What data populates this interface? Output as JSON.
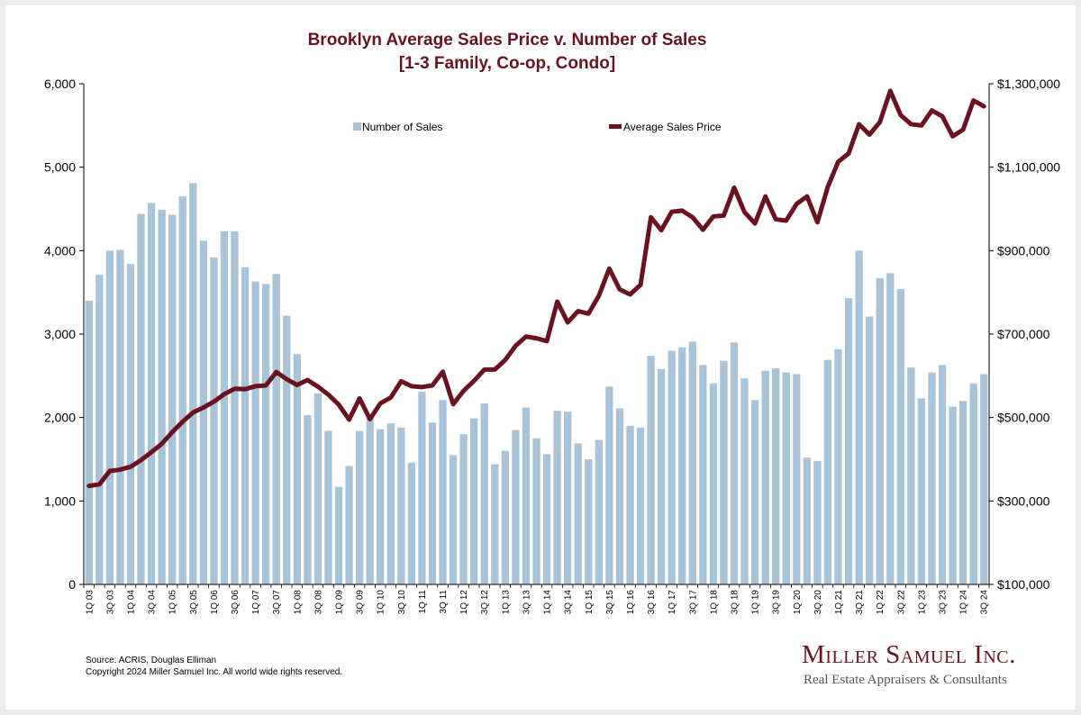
{
  "chart_data": {
    "type": "bar",
    "title": "Brooklyn Average Sales Price v. Number of Sales",
    "subtitle": "[1-3 Family, Co-op, Condo]",
    "categories": [
      "1Q 03",
      "2Q 03",
      "3Q 03",
      "4Q 03",
      "1Q 04",
      "2Q 04",
      "3Q 04",
      "4Q 04",
      "1Q 05",
      "2Q 05",
      "3Q 05",
      "4Q 05",
      "1Q 06",
      "2Q 06",
      "3Q 06",
      "4Q 06",
      "1Q 07",
      "2Q 07",
      "3Q 07",
      "4Q 07",
      "1Q 08",
      "2Q 08",
      "3Q 08",
      "4Q 08",
      "1Q 09",
      "2Q 09",
      "3Q 09",
      "4Q 09",
      "1Q 10",
      "2Q 10",
      "3Q 10",
      "4Q 10",
      "1Q 11",
      "2Q 11",
      "3Q 11",
      "4Q 11",
      "1Q 12",
      "2Q 12",
      "3Q 12",
      "4Q 12",
      "1Q 13",
      "2Q 13",
      "3Q 13",
      "4Q 13",
      "1Q 14",
      "2Q 14",
      "3Q 14",
      "4Q 14",
      "1Q 15",
      "2Q 15",
      "3Q 15",
      "4Q 15",
      "1Q 16",
      "2Q 16",
      "3Q 16",
      "4Q 16",
      "1Q 17",
      "2Q 17",
      "3Q 17",
      "4Q 17",
      "1Q 18",
      "2Q 18",
      "3Q 18",
      "4Q 18",
      "1Q 19",
      "2Q 19",
      "3Q 19",
      "4Q 19",
      "1Q 20",
      "2Q 20",
      "3Q 20",
      "4Q 20",
      "1Q 21",
      "2Q 21",
      "3Q 21",
      "4Q 21",
      "1Q 22",
      "2Q 22",
      "3Q 22",
      "4Q 22",
      "1Q 23",
      "2Q 23",
      "3Q 23",
      "4Q 23",
      "1Q 24",
      "2Q 24",
      "3Q 24"
    ],
    "x_tick_labels": [
      "1Q 03",
      "3Q 03",
      "1Q 04",
      "3Q 04",
      "1Q 05",
      "3Q 05",
      "1Q 06",
      "3Q 06",
      "1Q 07",
      "3Q 07",
      "1Q 08",
      "3Q 08",
      "1Q 09",
      "3Q 09",
      "1Q 10",
      "3Q 10",
      "1Q 11",
      "3Q 11",
      "1Q 12",
      "3Q 12",
      "1Q 13",
      "3Q 13",
      "1Q 14",
      "3Q 14",
      "1Q 15",
      "3Q 15",
      "1Q 16",
      "3Q 16",
      "1Q 17",
      "3Q 17",
      "1Q 18",
      "3Q 18",
      "1Q 19",
      "3Q 19",
      "1Q 20",
      "3Q 20",
      "1Q 21",
      "3Q 21",
      "1Q 22",
      "3Q 22",
      "1Q 23",
      "3Q 23",
      "1Q 24",
      "3Q 24"
    ],
    "series": [
      {
        "name": "Number of Sales",
        "type": "bar",
        "axis": "left",
        "color": "#a9c4d9",
        "values": [
          3400,
          3710,
          4000,
          4010,
          3840,
          4440,
          4570,
          4490,
          4430,
          4650,
          4810,
          4120,
          3920,
          4230,
          4230,
          3800,
          3630,
          3600,
          3720,
          3220,
          2760,
          2030,
          2290,
          1840,
          1170,
          1420,
          1840,
          1990,
          1860,
          1930,
          1880,
          1460,
          2310,
          1940,
          2210,
          1550,
          1800,
          1990,
          2170,
          1440,
          1600,
          1850,
          2120,
          1750,
          1560,
          2080,
          2070,
          1690,
          1500,
          1730,
          2370,
          2110,
          1900,
          1880,
          2740,
          2580,
          2800,
          2840,
          2910,
          2630,
          2410,
          2680,
          2900,
          2470,
          2210,
          2560,
          2590,
          2540,
          2520,
          1520,
          1480,
          2690,
          2820,
          3430,
          4000,
          3210,
          3670,
          3730,
          3540,
          2600,
          2230,
          2540,
          2630,
          2130,
          2200,
          2410,
          2520
        ]
      },
      {
        "name": "Average Sales Price",
        "type": "line",
        "axis": "right",
        "color": "#6b1220",
        "values": [
          336000,
          340000,
          372000,
          375000,
          382000,
          398000,
          417000,
          437000,
          465000,
          490000,
          512000,
          524000,
          538000,
          556000,
          569000,
          568000,
          575000,
          577000,
          609000,
          592000,
          578000,
          590000,
          574000,
          555000,
          531000,
          495000,
          546000,
          496000,
          534000,
          548000,
          587000,
          575000,
          573000,
          577000,
          610000,
          532000,
          564000,
          588000,
          615000,
          615000,
          638000,
          672000,
          694000,
          690000,
          683000,
          778000,
          728000,
          755000,
          749000,
          792000,
          857000,
          807000,
          795000,
          818000,
          980000,
          949000,
          993000,
          996000,
          980000,
          950000,
          982000,
          984000,
          1051000,
          992000,
          965000,
          1030000,
          975000,
          972000,
          1012000,
          1030000,
          968000,
          1053000,
          1113000,
          1133000,
          1203000,
          1178000,
          1208000,
          1283000,
          1225000,
          1203000,
          1200000,
          1236000,
          1222000,
          1174000,
          1190000,
          1260000,
          1246000
        ]
      }
    ],
    "y_left": {
      "min": 0,
      "max": 6000,
      "ticks": [
        "0",
        "1,000",
        "2,000",
        "3,000",
        "4,000",
        "5,000",
        "6,000"
      ]
    },
    "y_right": {
      "min": 100000,
      "max": 1300000,
      "ticks": [
        "$100,000",
        "$300,000",
        "$500,000",
        "$700,000",
        "$900,000",
        "$1,100,000",
        "$1,300,000"
      ]
    },
    "grid": false,
    "legend_position": "top"
  },
  "footer": {
    "source": "Source: ACRIS, Douglas Elliman",
    "copyright": "Copyright 2024 Miller Samuel Inc.  All world wide rights reserved."
  },
  "logo": {
    "name": "Miller Samuel Inc.",
    "tagline": "Real Estate Appraisers & Consultants"
  }
}
